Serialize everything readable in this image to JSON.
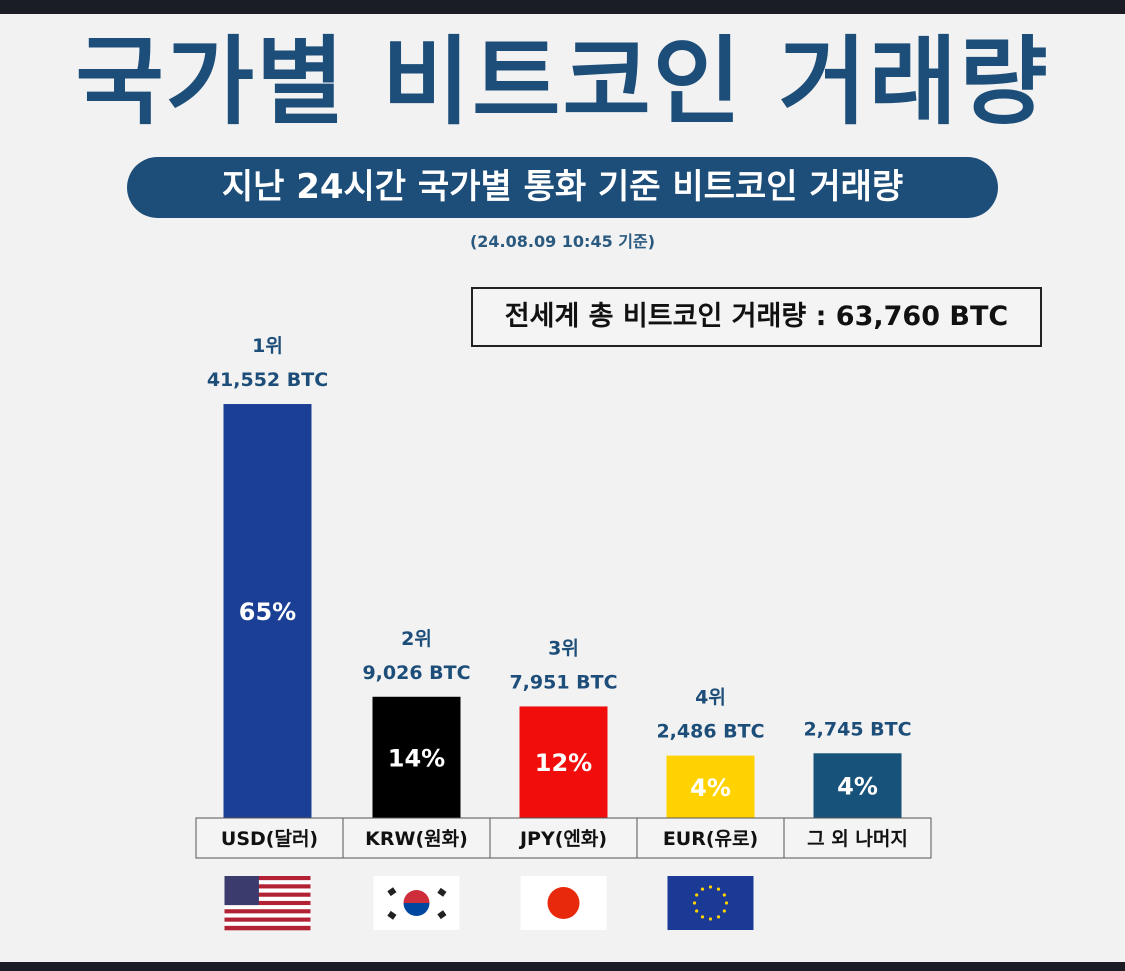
{
  "header": {
    "title": "국가별 비트코인 거래량",
    "subtitle": "지난 24시간 국가별 통화 기준 비트코인 거래량",
    "date_note": "(24.08.09 10:45 기준)",
    "total_label": "전세계 총 비트코인 거래량 : 63,760 BTC"
  },
  "chart_data": {
    "type": "bar",
    "title": "국가별 비트코인 거래량",
    "unit": "BTC",
    "total": 63760,
    "categories": [
      "USD(달러)",
      "KRW(원화)",
      "JPY(엔화)",
      "EUR(유로)",
      "그 외 나머지"
    ],
    "values": [
      41552,
      9026,
      7951,
      2486,
      2745
    ],
    "value_labels": [
      "41,552 BTC",
      "9,026 BTC",
      "7,951 BTC",
      "2,486 BTC",
      "2,745 BTC"
    ],
    "ranks": [
      "1위",
      "2위",
      "3위",
      "4위",
      ""
    ],
    "percent_labels": [
      "65%",
      "14%",
      "12%",
      "4%",
      "4%"
    ],
    "colors": [
      "#1a3f94",
      "#000000",
      "#f20d0d",
      "#ffd200",
      "#17527a"
    ],
    "flags": [
      "us-flag",
      "kr-flag",
      "jp-flag",
      "eu-flag",
      ""
    ],
    "grid": false,
    "legend": "none"
  },
  "colors": {
    "brand": "#1d4e79",
    "label": "#1d4e79"
  }
}
